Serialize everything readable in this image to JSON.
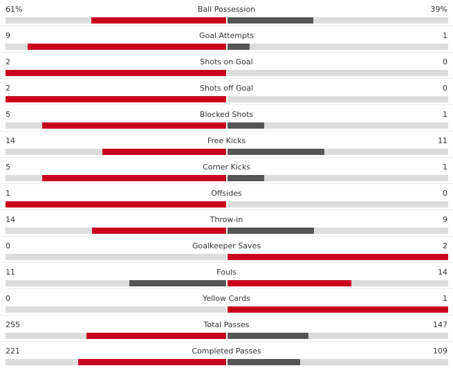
{
  "colors": {
    "leader": "#c8001e",
    "trailer": "#555555",
    "track": "#dcdcdc"
  },
  "stats": [
    {
      "label": "Ball Possession",
      "home": "61%",
      "away": "39%",
      "home_share": 0.61,
      "away_share": 0.39
    },
    {
      "label": "Goal Attempts",
      "home": "9",
      "away": "1",
      "home_share": 0.9,
      "away_share": 0.1
    },
    {
      "label": "Shots on Goal",
      "home": "2",
      "away": "0",
      "home_share": 1.0,
      "away_share": 0.0
    },
    {
      "label": "Shots off Goal",
      "home": "2",
      "away": "0",
      "home_share": 1.0,
      "away_share": 0.0
    },
    {
      "label": "Blocked Shots",
      "home": "5",
      "away": "1",
      "home_share": 0.833,
      "away_share": 0.167
    },
    {
      "label": "Free Kicks",
      "home": "14",
      "away": "11",
      "home_share": 0.56,
      "away_share": 0.44
    },
    {
      "label": "Corner Kicks",
      "home": "5",
      "away": "1",
      "home_share": 0.833,
      "away_share": 0.167
    },
    {
      "label": "Offsides",
      "home": "1",
      "away": "0",
      "home_share": 1.0,
      "away_share": 0.0
    },
    {
      "label": "Throw-in",
      "home": "14",
      "away": "9",
      "home_share": 0.609,
      "away_share": 0.391
    },
    {
      "label": "Goalkeeper Saves",
      "home": "0",
      "away": "2",
      "home_share": 0.0,
      "away_share": 1.0
    },
    {
      "label": "Fouls",
      "home": "11",
      "away": "14",
      "home_share": 0.44,
      "away_share": 0.56
    },
    {
      "label": "Yellow Cards",
      "home": "0",
      "away": "1",
      "home_share": 0.0,
      "away_share": 1.0
    },
    {
      "label": "Total Passes",
      "home": "255",
      "away": "147",
      "home_share": 0.634,
      "away_share": 0.366
    },
    {
      "label": "Completed Passes",
      "home": "221",
      "away": "109",
      "home_share": 0.67,
      "away_share": 0.33
    }
  ]
}
